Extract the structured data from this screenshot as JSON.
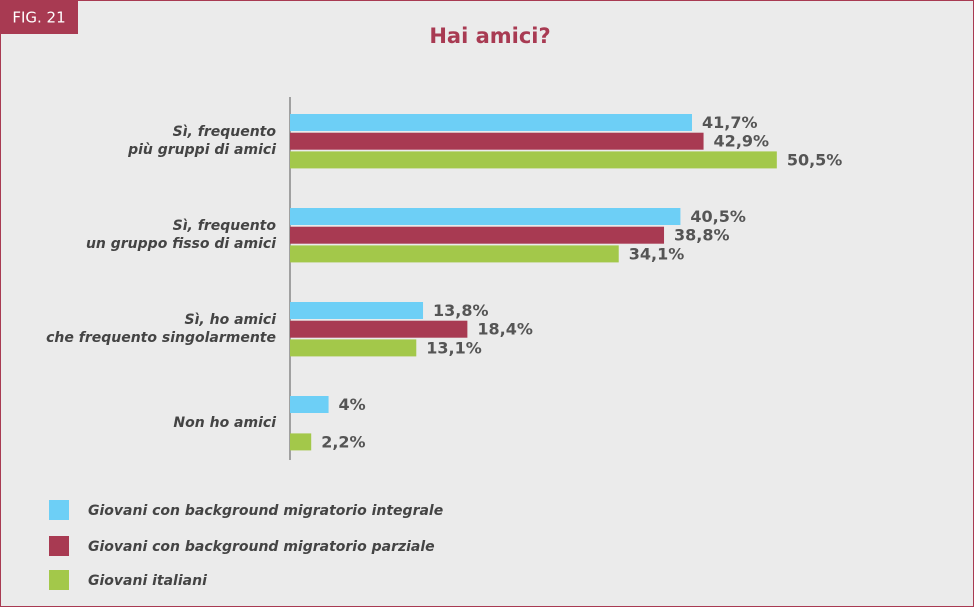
{
  "fig_label": "FIG. 21",
  "chart_data": {
    "type": "hbar",
    "title": "Hai amici?",
    "categories": [
      [
        "Sì, frequento",
        "più gruppi di amici"
      ],
      [
        "Sì, frequento",
        "un gruppo fisso di amici"
      ],
      [
        "Sì, ho amici",
        "che frequento singolarmente"
      ],
      [
        "Non ho amici"
      ]
    ],
    "series": [
      {
        "name": "Giovani con background migratorio integrale",
        "color": "#6dcff6",
        "values": [
          41.7,
          40.5,
          13.8,
          4
        ],
        "value_labels": [
          "41,7%",
          "40,5%",
          "13,8%",
          "4%"
        ]
      },
      {
        "name": "Giovani con background migratorio parziale",
        "color": "#a83a52",
        "values": [
          42.9,
          38.8,
          18.4,
          null
        ],
        "value_labels": [
          "42,9%",
          "38,8%",
          "18,4%",
          null
        ]
      },
      {
        "name": "Giovani italiani",
        "color": "#a3c84a",
        "values": [
          50.5,
          34.1,
          13.1,
          2.2
        ],
        "value_labels": [
          "50,5%",
          "34,1%",
          "13,1%",
          "2,2%"
        ]
      }
    ]
  }
}
